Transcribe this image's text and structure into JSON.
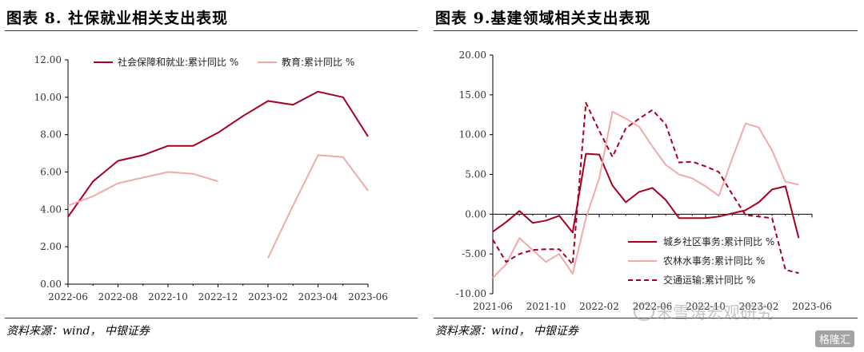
{
  "left": {
    "title": "图表 8. 社保就业相关支出表现",
    "source": "资料来源：wind， 中银证券"
  },
  "right": {
    "title": "图表 9.基建领域相关支出表现",
    "source": "资料来源：wind， 中银证券",
    "watermark": "宋雪涛宏观研究",
    "badge": "格隆汇"
  },
  "colors": {
    "dark": "#a50021",
    "light": "#f2aaa8"
  },
  "chart_data": [
    {
      "type": "line",
      "x": [
        "2022-06",
        "2022-07",
        "2022-08",
        "2022-09",
        "2022-10",
        "2022-11",
        "2022-12",
        "2023-01",
        "2023-02",
        "2023-03",
        "2023-04",
        "2023-05",
        "2023-06"
      ],
      "xtick_labels": [
        "2022-06",
        "2022-08",
        "2022-10",
        "2022-12",
        "2023-02",
        "2023-04",
        "2023-06"
      ],
      "ylim": [
        0,
        12
      ],
      "ytick_labels": [
        "0.00",
        "2.00",
        "4.00",
        "6.00",
        "8.00",
        "10.00",
        "12.00"
      ],
      "legend_position": "top",
      "series": [
        {
          "name": "社会保障和就业:累计同比 %",
          "style": "dark-solid",
          "values": [
            3.6,
            5.5,
            6.6,
            6.9,
            7.4,
            7.4,
            8.1,
            9.0,
            9.8,
            9.6,
            10.3,
            10.0,
            7.9
          ]
        },
        {
          "name": "教育:累计同比 %",
          "style": "light-solid",
          "values": [
            4.2,
            4.7,
            5.4,
            5.7,
            6.0,
            5.9,
            5.5,
            null,
            1.4,
            4.2,
            6.9,
            6.8,
            5.0
          ]
        }
      ]
    },
    {
      "type": "line",
      "x": [
        "2021-06",
        "2021-07",
        "2021-08",
        "2021-09",
        "2021-10",
        "2021-11",
        "2021-12",
        "2022-01",
        "2022-02",
        "2022-03",
        "2022-04",
        "2022-05",
        "2022-06",
        "2022-07",
        "2022-08",
        "2022-09",
        "2022-10",
        "2022-11",
        "2022-12",
        "2023-01",
        "2023-02",
        "2023-03",
        "2023-04",
        "2023-05",
        "2023-06"
      ],
      "xtick_labels": [
        "2021-06",
        "2021-10",
        "2022-02",
        "2022-06",
        "2022-10",
        "2023-02",
        "2023-06"
      ],
      "ylim": [
        -10,
        20
      ],
      "ytick_labels": [
        "-10.00",
        "-5.00",
        "0.00",
        "5.00",
        "10.00",
        "15.00",
        "20.00"
      ],
      "legend_position": "bottom-right",
      "series": [
        {
          "name": "城乡社区事务:累计同比 %",
          "style": "dark-solid",
          "values": [
            -2.2,
            -1.0,
            0.4,
            -1.1,
            -0.8,
            -0.2,
            -2.3,
            7.6,
            7.5,
            3.6,
            1.5,
            2.8,
            3.3,
            1.8,
            -0.5,
            -0.5,
            -0.5,
            -0.3,
            0.1,
            0.5,
            1.5,
            3.1,
            3.5,
            -3.0,
            null
          ]
        },
        {
          "name": "农林水事务:累计同比 %",
          "style": "light-solid",
          "values": [
            -8.0,
            -6.3,
            -3.0,
            -4.5,
            -6.0,
            -5.0,
            -7.5,
            -0.5,
            4.5,
            12.9,
            12.0,
            11.0,
            8.5,
            6.2,
            5.0,
            4.5,
            3.5,
            2.3,
            7.0,
            11.4,
            10.9,
            8.0,
            4.1,
            3.7,
            null
          ]
        },
        {
          "name": "交通运输:累计同比 %",
          "style": "dark-dashed",
          "values": [
            -3.2,
            -6.0,
            -5.0,
            -4.5,
            -4.4,
            -4.4,
            -6.3,
            14.0,
            10.5,
            7.2,
            10.8,
            12.0,
            13.1,
            11.3,
            6.5,
            6.6,
            6.0,
            5.3,
            2.5,
            -0.1,
            -0.3,
            -0.5,
            -7.0,
            -7.4,
            null
          ]
        }
      ]
    }
  ]
}
